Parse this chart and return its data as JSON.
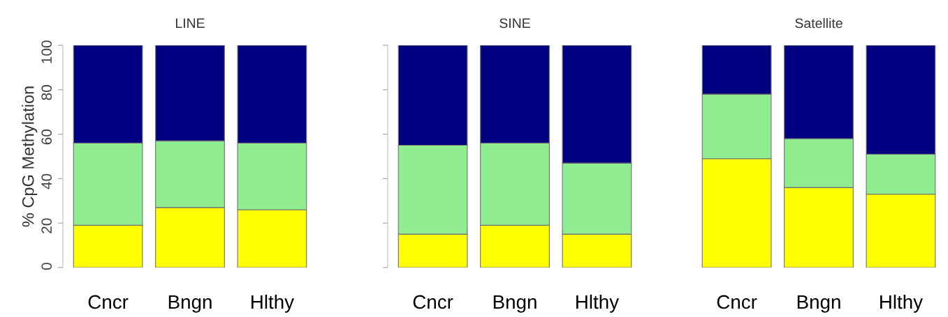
{
  "chart_data": [
    {
      "type": "bar",
      "stacked": true,
      "title": "LINE",
      "ylabel": "% CpG Methylation",
      "categories": [
        "Cncr",
        "Bngn",
        "Hlthy"
      ],
      "ylim": [
        0,
        100
      ],
      "yticks": [
        0,
        20,
        40,
        60,
        80,
        100
      ],
      "grid": false,
      "legend": false,
      "series": [
        {
          "color": "#ffff00",
          "values": [
            19,
            27,
            26
          ]
        },
        {
          "color": "#90ee90",
          "values": [
            37,
            30,
            30
          ]
        },
        {
          "color": "#000080",
          "values": [
            44,
            43,
            44
          ]
        }
      ]
    },
    {
      "type": "bar",
      "stacked": true,
      "title": "SINE",
      "categories": [
        "Cncr",
        "Bngn",
        "Hlthy"
      ],
      "ylim": [
        0,
        100
      ],
      "yticks": [
        {
          "value": 0,
          "label": null
        },
        {
          "value": 20,
          "label": null
        },
        {
          "value": 40,
          "label": null
        },
        {
          "value": 60,
          "label": null
        },
        {
          "value": 80,
          "label": null
        },
        {
          "value": 100,
          "label": null
        }
      ],
      "tick_labels": "x",
      "grid": false,
      "legend": false,
      "series": [
        {
          "color": "#ffff00",
          "values": [
            15,
            19,
            15
          ]
        },
        {
          "color": "#90ee90",
          "values": [
            40,
            37,
            32
          ]
        },
        {
          "color": "#000080",
          "values": [
            45,
            44,
            53
          ]
        }
      ]
    },
    {
      "type": "bar",
      "stacked": true,
      "title": "Satellite",
      "categories": [
        "Cncr",
        "Bngn",
        "Hlthy"
      ],
      "ylim": [
        0,
        100
      ],
      "tick_labels": "x",
      "grid": false,
      "legend": false,
      "series": [
        {
          "color": "#ffff00",
          "values": [
            49,
            36,
            33
          ]
        },
        {
          "color": "#90ee90",
          "values": [
            29,
            22,
            18
          ]
        },
        {
          "color": "#000080",
          "values": [
            22,
            42,
            49
          ]
        }
      ]
    }
  ]
}
